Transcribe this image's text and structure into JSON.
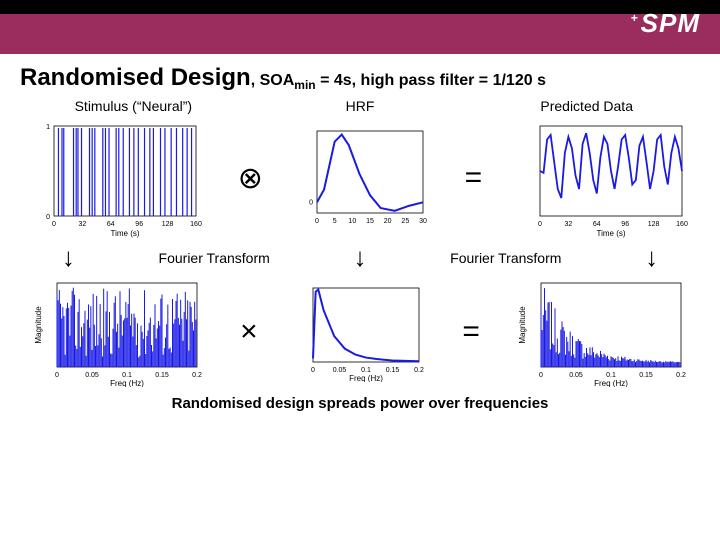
{
  "header": {
    "logo_text": "SPM",
    "logo_prefix": "+"
  },
  "title": {
    "main": "Randomised Design",
    "sub_prefix": ", SOA",
    "sub_subscript": "min",
    "sub_rest": " = 4s, high pass filter = 1/120 s"
  },
  "column_labels": {
    "left": "Stimulus (“Neural”)",
    "mid": "HRF",
    "right": "Predicted Data"
  },
  "operators": {
    "convolve": "⊗",
    "equals": "=",
    "multiply": "×",
    "down_arrow": "↓"
  },
  "process_label": "Fourier Transform",
  "footer": "Randomised design spreads power over frequencies",
  "axes": {
    "time": {
      "label": "Time (s)",
      "ticks": [
        "0",
        "32",
        "64",
        "96",
        "128",
        "160"
      ]
    },
    "hrf_x": {
      "ticks": [
        "0",
        "5",
        "10",
        "15",
        "20",
        "25",
        "30"
      ]
    },
    "freq": {
      "label": "Freq (Hz)",
      "ticks": [
        "0",
        "0.05",
        "0.1",
        "0.15",
        "0.2"
      ]
    },
    "mag_label": "Magnitude"
  },
  "colors": {
    "header_bg": "#9a2c5e",
    "line": "#1a1ae6",
    "axis": "#000000",
    "background": "#ffffff"
  },
  "panel_sizes": {
    "time_panel": {
      "w": 170,
      "h": 120
    },
    "small_panel": {
      "w": 130,
      "h": 100
    },
    "freq_panel": {
      "w": 170,
      "h": 100
    }
  },
  "stimulus": {
    "events_x": [
      5,
      9,
      11,
      22,
      25,
      27,
      31,
      40,
      43,
      46,
      55,
      58,
      62,
      70,
      73,
      78,
      85,
      90,
      95,
      102,
      108,
      112,
      120,
      125,
      132,
      138,
      145,
      150,
      155
    ]
  },
  "hrf": {
    "points": [
      [
        0,
        0
      ],
      [
        2,
        18
      ],
      [
        5,
        85
      ],
      [
        7,
        95
      ],
      [
        9,
        80
      ],
      [
        12,
        40
      ],
      [
        15,
        10
      ],
      [
        18,
        -8
      ],
      [
        22,
        -12
      ],
      [
        26,
        -5
      ],
      [
        30,
        0
      ]
    ]
  },
  "predicted": {
    "points": [
      [
        0,
        50
      ],
      [
        4,
        48
      ],
      [
        8,
        85
      ],
      [
        12,
        90
      ],
      [
        16,
        60
      ],
      [
        20,
        30
      ],
      [
        24,
        20
      ],
      [
        28,
        70
      ],
      [
        32,
        88
      ],
      [
        36,
        75
      ],
      [
        40,
        45
      ],
      [
        44,
        30
      ],
      [
        48,
        80
      ],
      [
        52,
        92
      ],
      [
        56,
        70
      ],
      [
        60,
        40
      ],
      [
        64,
        25
      ],
      [
        68,
        65
      ],
      [
        72,
        88
      ],
      [
        76,
        80
      ],
      [
        80,
        50
      ],
      [
        84,
        30
      ],
      [
        88,
        55
      ],
      [
        92,
        85
      ],
      [
        96,
        90
      ],
      [
        100,
        65
      ],
      [
        104,
        35
      ],
      [
        108,
        40
      ],
      [
        112,
        78
      ],
      [
        116,
        88
      ],
      [
        120,
        60
      ],
      [
        124,
        30
      ],
      [
        128,
        50
      ],
      [
        132,
        85
      ],
      [
        136,
        90
      ],
      [
        140,
        55
      ],
      [
        144,
        35
      ],
      [
        148,
        70
      ],
      [
        152,
        88
      ],
      [
        156,
        75
      ],
      [
        160,
        50
      ]
    ]
  },
  "stim_spectrum": {
    "n_bars": 120,
    "max": 0.9,
    "min": 0.05
  },
  "hrf_spectrum": {
    "points": [
      [
        0,
        5
      ],
      [
        0.005,
        95
      ],
      [
        0.01,
        98
      ],
      [
        0.02,
        70
      ],
      [
        0.04,
        35
      ],
      [
        0.06,
        18
      ],
      [
        0.08,
        10
      ],
      [
        0.1,
        6
      ],
      [
        0.12,
        4
      ],
      [
        0.15,
        2
      ],
      [
        0.2,
        1
      ]
    ]
  },
  "predicted_spectrum": {
    "n_bars": 120,
    "shape": "decay"
  }
}
